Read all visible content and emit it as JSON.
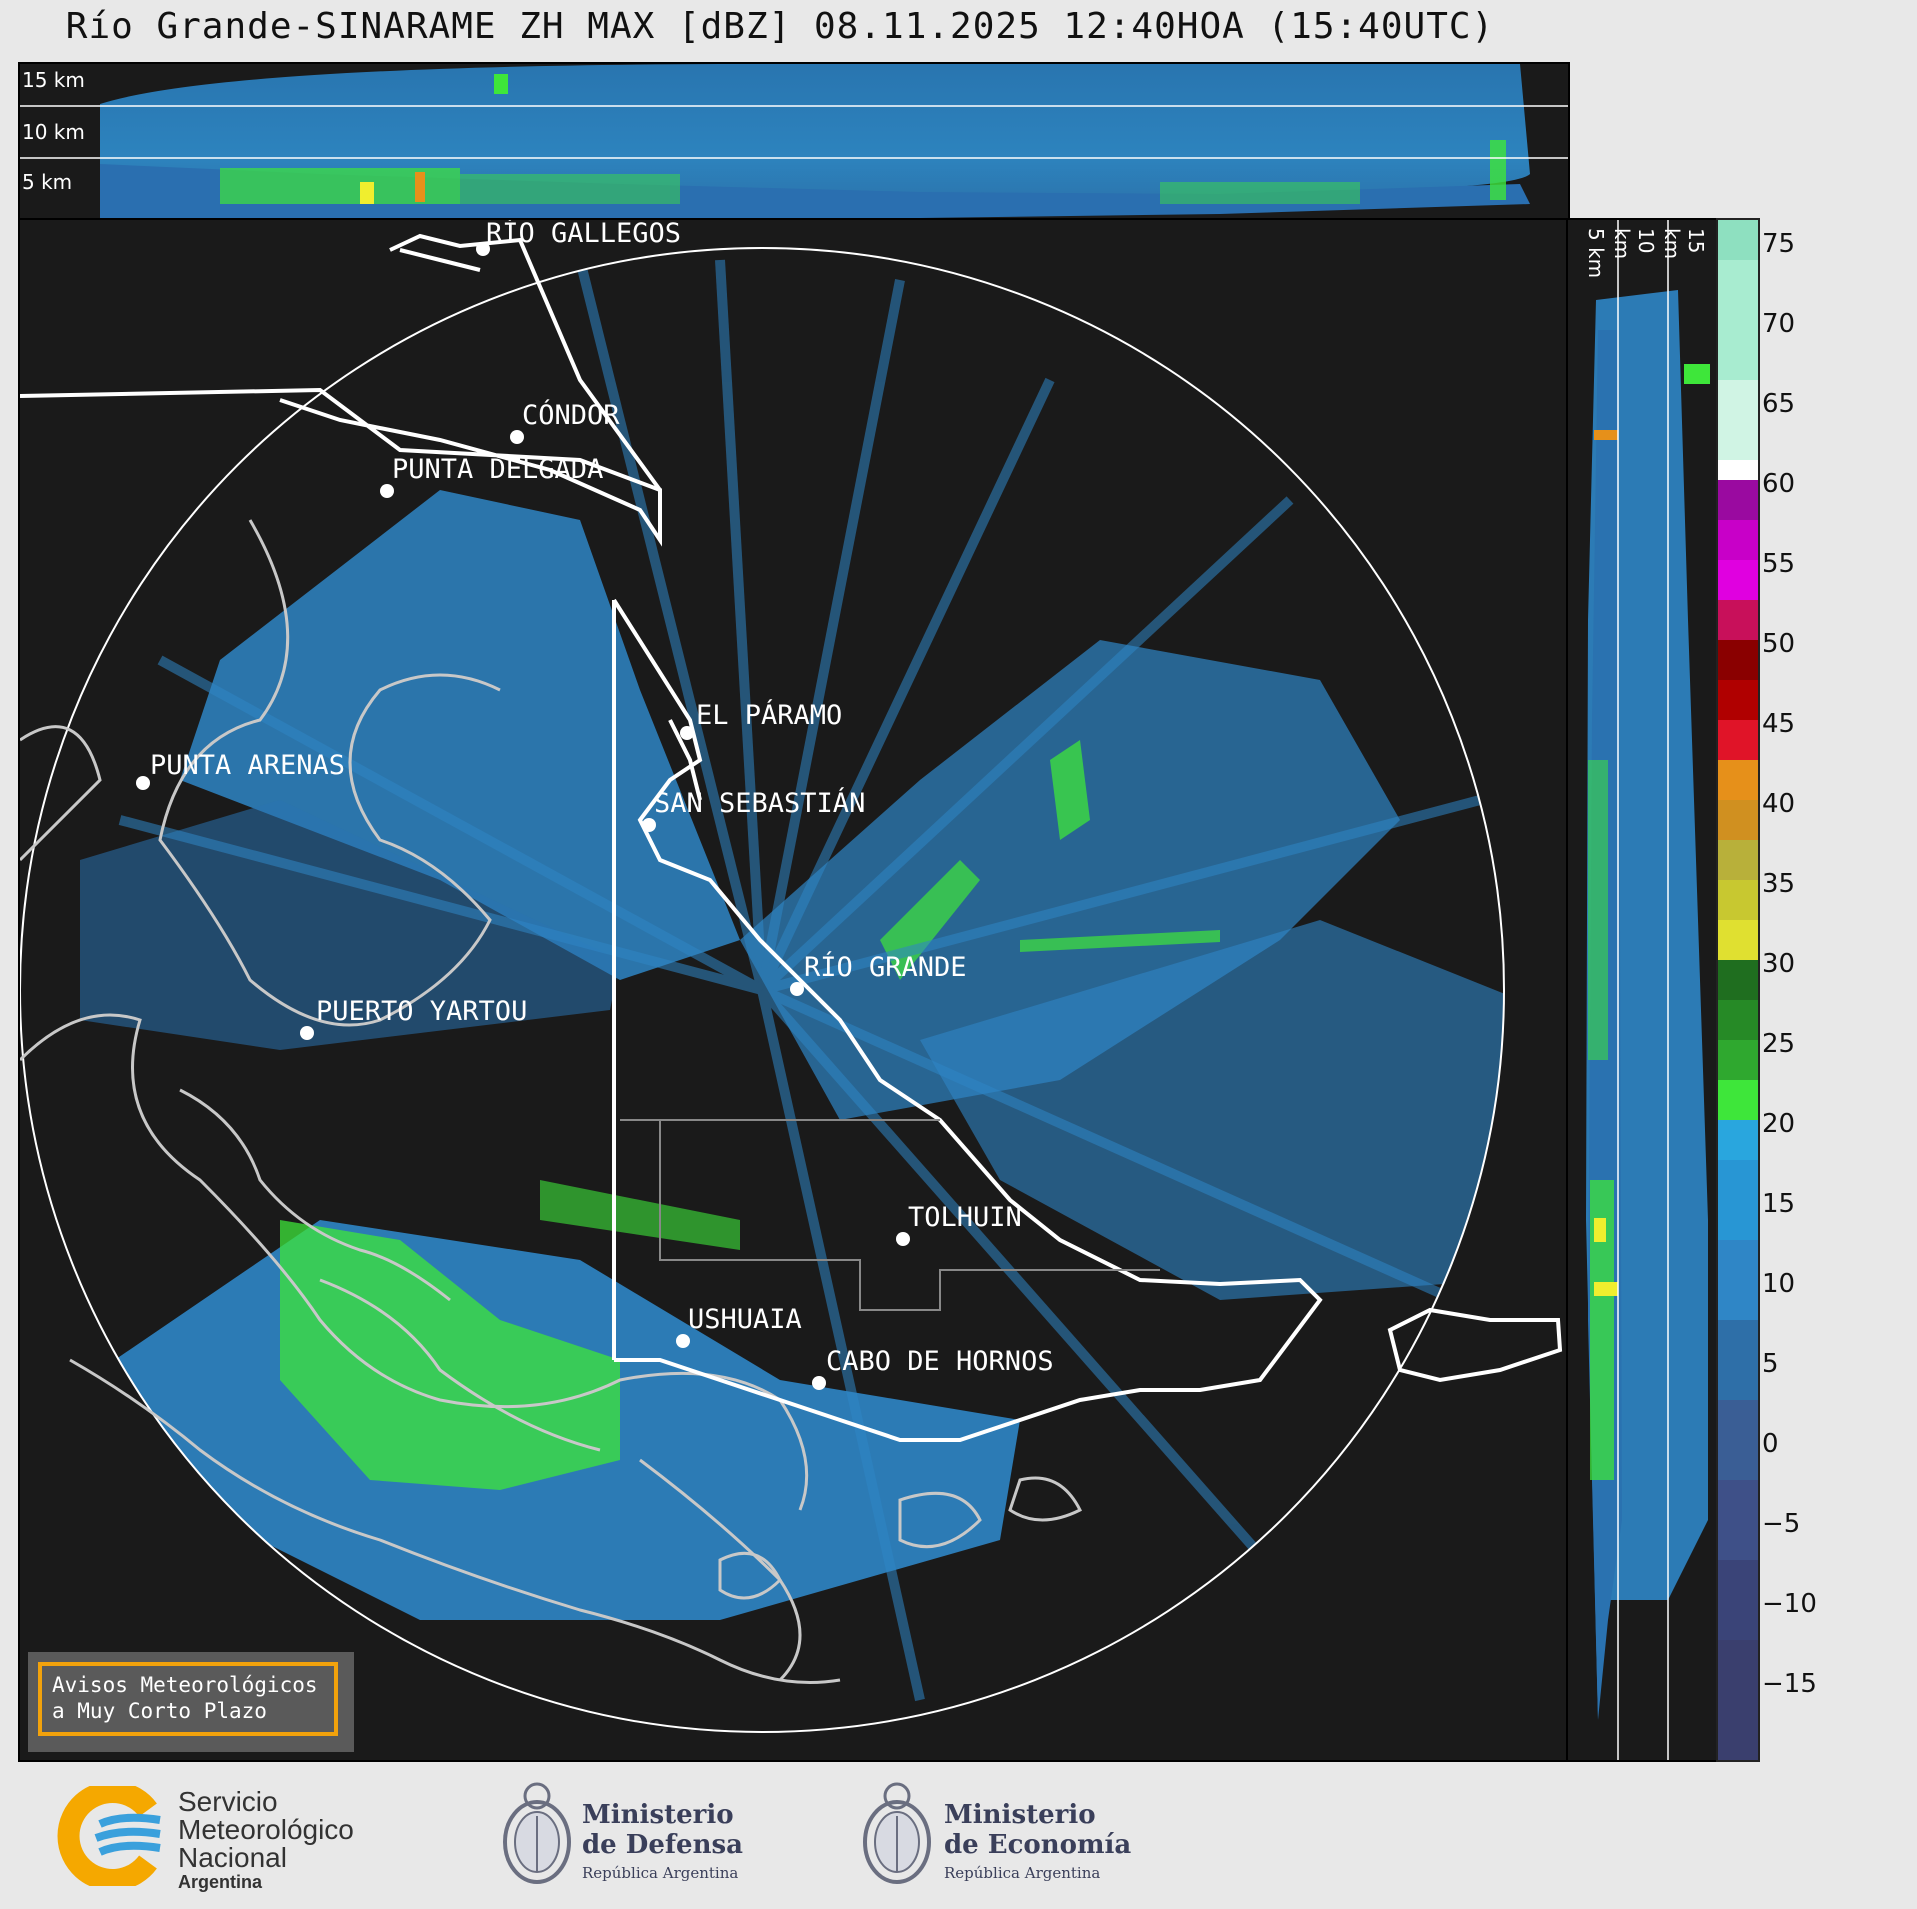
{
  "title": "Río Grande-SINARAME ZH MAX [dBZ] 08.11.2025 12:40HOA (15:40UTC)",
  "top_panel": {
    "height_labels": [
      "15 km",
      "10 km",
      "5 km"
    ]
  },
  "side_panel": {
    "height_labels": [
      "5 km",
      "10 km",
      "15 km"
    ]
  },
  "colorbar": {
    "ticks": [
      "75",
      "70",
      "65",
      "60",
      "55",
      "50",
      "45",
      "40",
      "35",
      "30",
      "25",
      "20",
      "15",
      "10",
      "5",
      "0",
      "−5",
      "−10",
      "−15"
    ],
    "range": [
      -19.5,
      76.5
    ],
    "colors": {
      "low": "#3a3f6e",
      "mid_low": "#3e5a95",
      "blue": "#2f86c6",
      "light_blue": "#29a6de",
      "green_light": "#3ee63a",
      "green_dark": "#1f6e1f",
      "yellow": "#f0ee2e",
      "olive": "#b8b03a",
      "orange": "#e6901a",
      "red": "#e01428",
      "dark_red": "#8a0000",
      "magenta": "#e000e0",
      "purple": "#9a0aa0",
      "white": "#ffffff",
      "mint": "#8ee0c0"
    }
  },
  "cities": [
    {
      "name": "RÍO GALLEGOS"
    },
    {
      "name": "CÓNDOR"
    },
    {
      "name": "PUNTA DELGADA"
    },
    {
      "name": "EL PÁRAMO"
    },
    {
      "name": "PUNTA ARENAS"
    },
    {
      "name": "SAN SEBASTIÁN"
    },
    {
      "name": "RÍO GRANDE"
    },
    {
      "name": "PUERTO YARTOU"
    },
    {
      "name": "TOLHUIN"
    },
    {
      "name": "USHUAIA"
    },
    {
      "name": "CABO DE HORNOS"
    }
  ],
  "alert_box": {
    "line1": "Avisos Meteorológicos",
    "line2": "a Muy Corto Plazo"
  },
  "logos": {
    "smn": {
      "line1": "Servicio",
      "line2": "Meteorológico",
      "line3": "Nacional",
      "line4": "Argentina"
    },
    "defensa": {
      "line1": "Ministerio",
      "line2": "de Defensa",
      "line3": "República Argentina"
    },
    "economia": {
      "line1": "Ministerio",
      "line2": "de Economía",
      "line3": "República Argentina"
    }
  }
}
